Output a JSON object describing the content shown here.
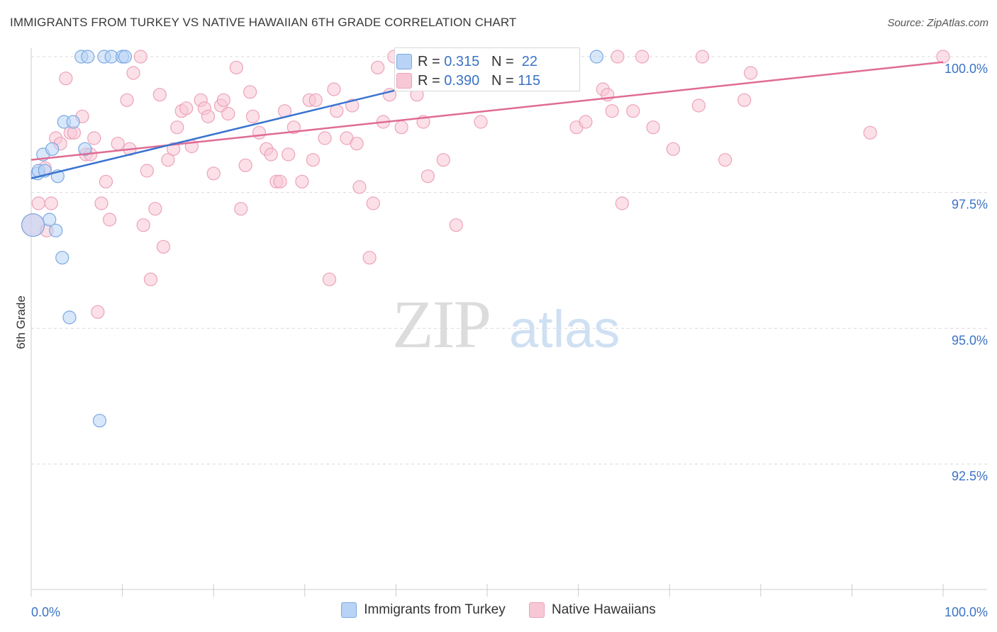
{
  "title": "IMMIGRANTS FROM TURKEY VS NATIVE HAWAIIAN 6TH GRADE CORRELATION CHART",
  "source": "Source: ZipAtlas.com",
  "watermark": {
    "zip": "ZIP",
    "atlas": "atlas"
  },
  "stats": {
    "turkey": {
      "r_label": "R =",
      "r_value": "0.315",
      "n_label": "N =",
      "n_value": "22"
    },
    "hawaiian": {
      "r_label": "R =",
      "r_value": "0.390",
      "n_label": "N =",
      "n_value": "115"
    }
  },
  "legend": {
    "turkey": "Immigrants from Turkey",
    "hawaiian": "Native Hawaiians"
  },
  "colors": {
    "blue_fill": "#b8d3f5",
    "blue_stroke": "#7aa8e2",
    "blue_line": "#3a74d0",
    "pink_fill": "#f8c7d6",
    "pink_stroke": "#eda2b9",
    "pink_line": "#e06b94",
    "tick_label": "#3b73c4",
    "grid": "#d9d9d9"
  },
  "chart_data": {
    "type": "scatter",
    "title": "IMMIGRANTS FROM TURKEY VS NATIVE HAWAIIAN 6TH GRADE CORRELATION CHART",
    "xlabel": "",
    "ylabel": "6th Grade",
    "xlim": [
      0,
      100
    ],
    "ylim": [
      90.2,
      100.4
    ],
    "x_tick_labels": [
      "0.0%",
      "100.0%"
    ],
    "y_ticks": [
      {
        "value": 100.0,
        "label": "100.0%"
      },
      {
        "value": 97.5,
        "label": "97.5%"
      },
      {
        "value": 95.0,
        "label": "95.0%"
      },
      {
        "value": 92.5,
        "label": "92.5%"
      }
    ],
    "grid": true,
    "series": [
      {
        "name": "Immigrants from Turkey",
        "color": "blue",
        "r": 0.315,
        "n": 22,
        "trendline": {
          "x": [
            0,
            52
          ],
          "y": [
            97.76,
            99.87
          ]
        },
        "points": [
          [
            0.7,
            97.85
          ],
          [
            0.8,
            97.9
          ],
          [
            1.3,
            98.2
          ],
          [
            1.5,
            97.9
          ],
          [
            2.0,
            97.0
          ],
          [
            2.3,
            98.3
          ],
          [
            2.7,
            96.8
          ],
          [
            2.9,
            97.8
          ],
          [
            3.4,
            96.3
          ],
          [
            3.6,
            98.8
          ],
          [
            4.2,
            95.2
          ],
          [
            4.6,
            98.8
          ],
          [
            5.5,
            100.0
          ],
          [
            6.2,
            100.0
          ],
          [
            5.9,
            98.3
          ],
          [
            7.5,
            93.3
          ],
          [
            8.0,
            100.0
          ],
          [
            8.8,
            100.0
          ],
          [
            10.0,
            100.0
          ],
          [
            10.3,
            100.0
          ],
          [
            62.0,
            100.0
          ],
          [
            0.2,
            96.9
          ]
        ]
      },
      {
        "name": "Native Hawaiians",
        "color": "pink",
        "r": 0.39,
        "n": 115,
        "trendline": {
          "x": [
            0,
            100
          ],
          "y": [
            98.1,
            99.9
          ]
        },
        "points": [
          [
            0.2,
            96.9
          ],
          [
            0.8,
            97.3
          ],
          [
            1.5,
            97.95
          ],
          [
            1.7,
            96.8
          ],
          [
            2.2,
            97.3
          ],
          [
            2.7,
            98.5
          ],
          [
            3.2,
            98.4
          ],
          [
            3.8,
            99.6
          ],
          [
            4.3,
            98.6
          ],
          [
            4.7,
            98.6
          ],
          [
            5.6,
            98.9
          ],
          [
            6.0,
            98.2
          ],
          [
            6.5,
            98.2
          ],
          [
            6.9,
            98.5
          ],
          [
            7.3,
            95.3
          ],
          [
            7.7,
            97.3
          ],
          [
            8.2,
            97.7
          ],
          [
            8.6,
            97.0
          ],
          [
            9.5,
            98.4
          ],
          [
            10.5,
            99.2
          ],
          [
            10.8,
            98.3
          ],
          [
            11.2,
            99.7
          ],
          [
            12.0,
            100.0
          ],
          [
            12.3,
            96.9
          ],
          [
            12.7,
            97.9
          ],
          [
            13.1,
            95.9
          ],
          [
            13.6,
            97.2
          ],
          [
            14.1,
            99.3
          ],
          [
            14.5,
            96.5
          ],
          [
            15.0,
            98.1
          ],
          [
            15.6,
            98.3
          ],
          [
            16.0,
            98.7
          ],
          [
            16.5,
            99.0
          ],
          [
            17.0,
            99.05
          ],
          [
            17.6,
            98.35
          ],
          [
            18.6,
            99.2
          ],
          [
            19.0,
            99.05
          ],
          [
            19.4,
            98.9
          ],
          [
            20.0,
            97.85
          ],
          [
            20.8,
            99.1
          ],
          [
            21.1,
            99.2
          ],
          [
            21.6,
            98.95
          ],
          [
            22.5,
            99.8
          ],
          [
            23.0,
            97.2
          ],
          [
            23.5,
            98.0
          ],
          [
            24.0,
            99.35
          ],
          [
            24.3,
            98.9
          ],
          [
            25.0,
            98.6
          ],
          [
            25.8,
            98.3
          ],
          [
            26.3,
            98.2
          ],
          [
            26.9,
            97.7
          ],
          [
            27.3,
            97.7
          ],
          [
            27.8,
            99.0
          ],
          [
            28.2,
            98.2
          ],
          [
            28.8,
            98.7
          ],
          [
            29.7,
            97.7
          ],
          [
            30.5,
            99.2
          ],
          [
            30.9,
            98.1
          ],
          [
            31.2,
            99.2
          ],
          [
            32.2,
            98.5
          ],
          [
            32.7,
            95.9
          ],
          [
            33.2,
            99.4
          ],
          [
            33.5,
            99.0
          ],
          [
            34.6,
            98.5
          ],
          [
            35.2,
            99.1
          ],
          [
            35.7,
            98.4
          ],
          [
            36.0,
            97.6
          ],
          [
            37.1,
            96.3
          ],
          [
            37.5,
            97.3
          ],
          [
            38.0,
            99.8
          ],
          [
            38.6,
            98.8
          ],
          [
            39.3,
            99.3
          ],
          [
            39.8,
            100.0
          ],
          [
            40.6,
            98.7
          ],
          [
            41.3,
            100.0
          ],
          [
            42.3,
            99.3
          ],
          [
            43.0,
            98.8
          ],
          [
            43.5,
            97.8
          ],
          [
            44.2,
            100.0
          ],
          [
            45.2,
            98.1
          ],
          [
            46.6,
            96.9
          ],
          [
            47.3,
            100.0
          ],
          [
            48.8,
            100.0
          ],
          [
            49.3,
            98.8
          ],
          [
            52.1,
            100.0
          ],
          [
            53.6,
            100.0
          ],
          [
            57.2,
            100.0
          ],
          [
            59.4,
            100.0
          ],
          [
            59.8,
            98.7
          ],
          [
            60.8,
            98.8
          ],
          [
            62.7,
            99.4
          ],
          [
            63.2,
            99.3
          ],
          [
            63.7,
            99.0
          ],
          [
            64.3,
            100.0
          ],
          [
            64.8,
            97.3
          ],
          [
            66.0,
            99.0
          ],
          [
            67.0,
            100.0
          ],
          [
            68.2,
            98.7
          ],
          [
            70.4,
            98.3
          ],
          [
            73.2,
            99.1
          ],
          [
            73.6,
            100.0
          ],
          [
            76.1,
            98.1
          ],
          [
            78.2,
            99.2
          ],
          [
            78.9,
            99.7
          ],
          [
            92.0,
            98.6
          ],
          [
            100.0,
            100.0
          ],
          [
            55.0,
            100.0
          ],
          [
            56.5,
            100.0
          ],
          [
            41.8,
            100.0
          ]
        ]
      }
    ]
  }
}
